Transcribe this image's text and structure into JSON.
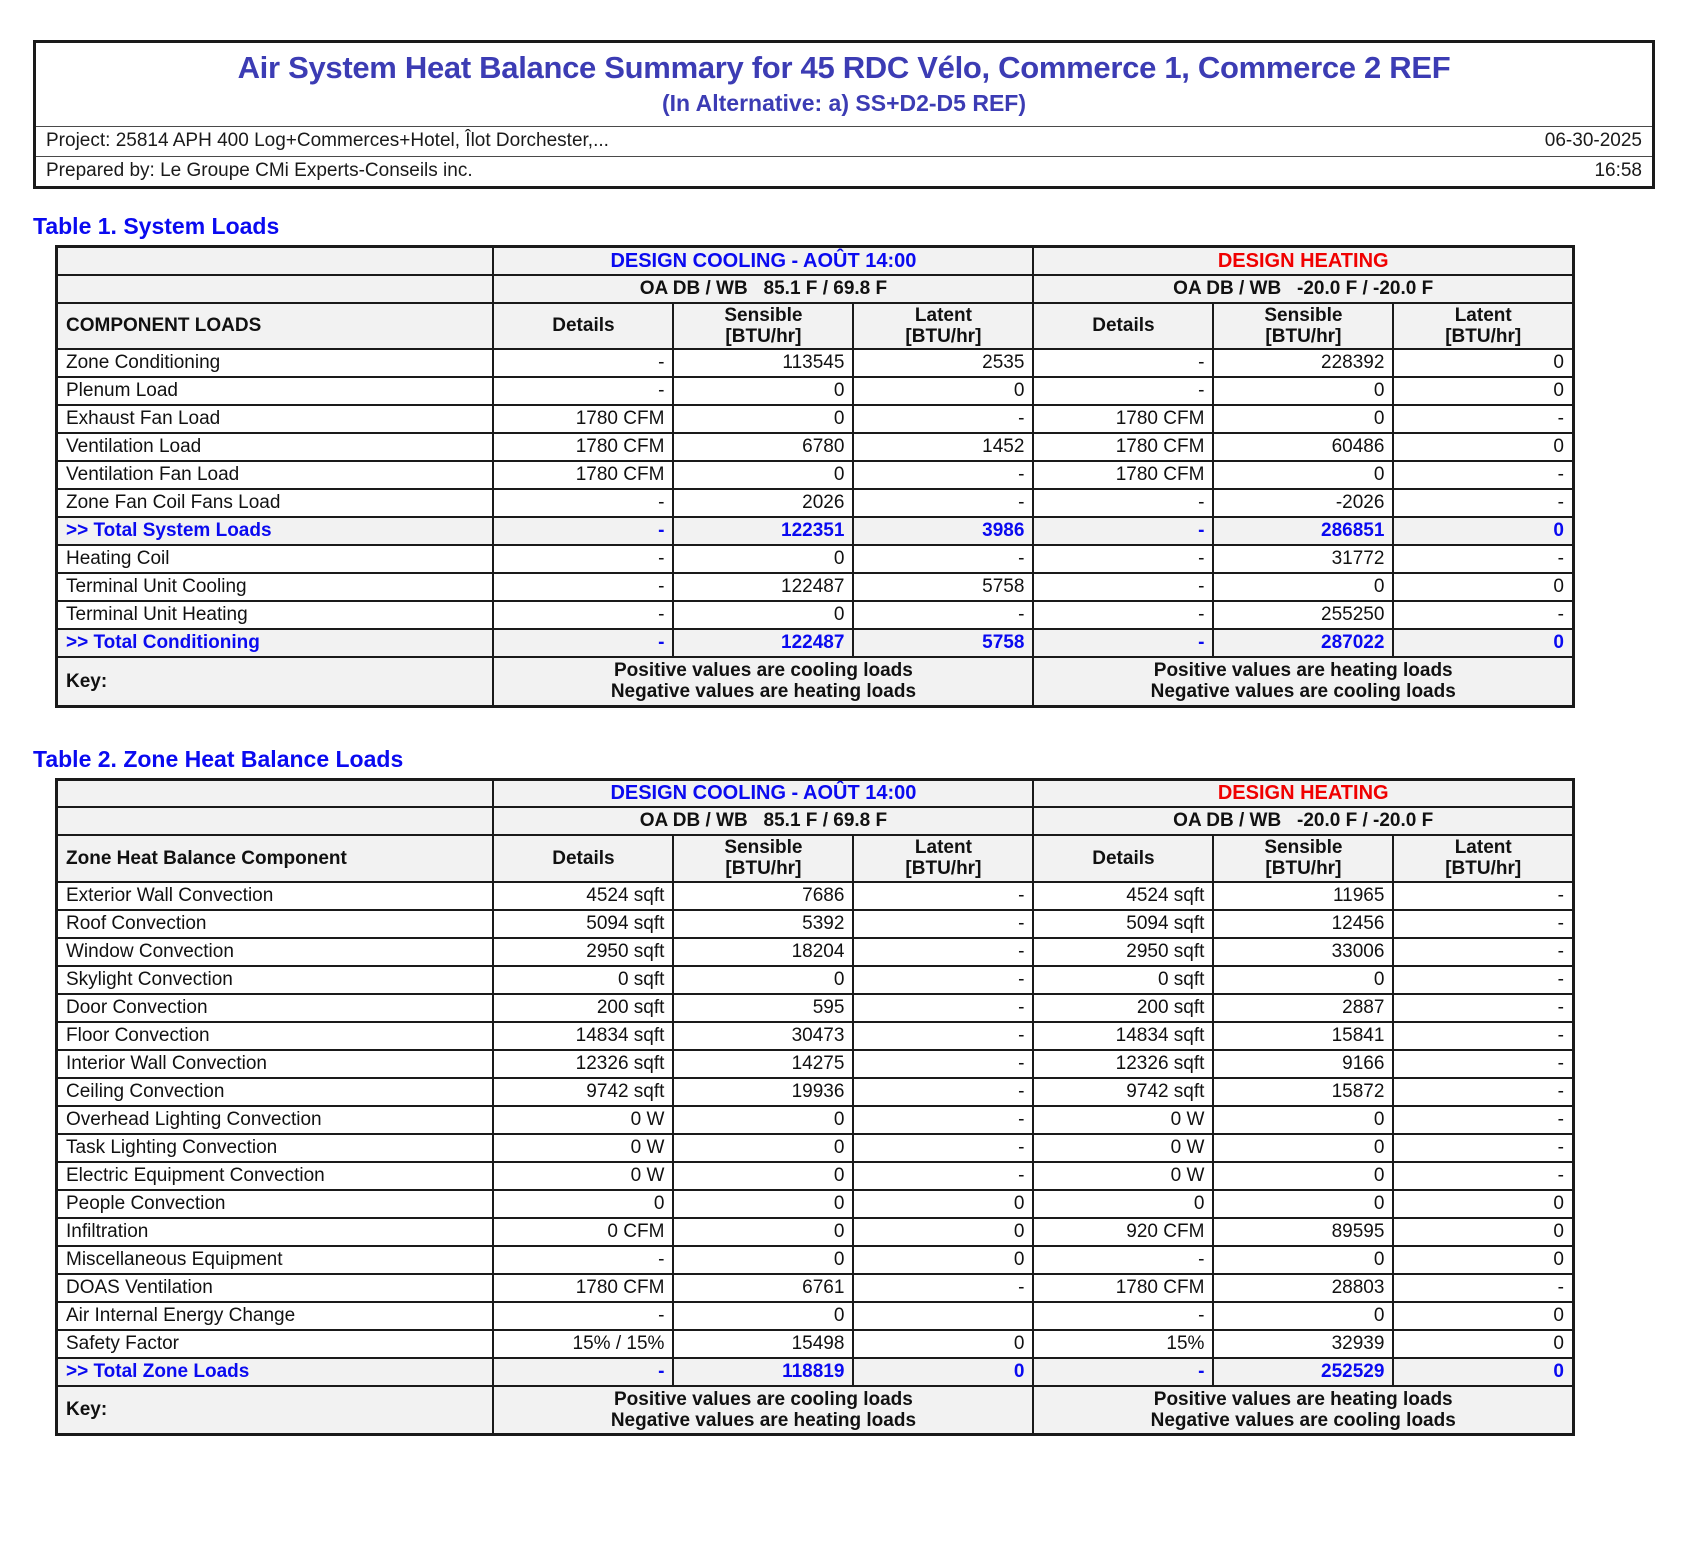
{
  "colors": {
    "title": "#3C3CB4",
    "caption": "#0A0AF0",
    "cooling": "#0A0AF0",
    "heating": "#F00000",
    "band_bg": "#F2F2F2"
  },
  "header": {
    "title": "Air System Heat Balance Summary for 45 RDC Vélo, Commerce 1, Commerce 2 REF",
    "subtitle": "(In Alternative: a) SS+D2-D5 REF)",
    "project": "Project: 25814 APH 400 Log+Commerces+Hotel, Îlot Dorchester,...",
    "date": "06-30-2025",
    "prepared_by": "Prepared by: Le Groupe CMi Experts-Conseils inc.",
    "time": "16:58"
  },
  "columns": {
    "details": "Details",
    "sensible": "Sensible",
    "latent": "Latent",
    "unit": "[BTU/hr]"
  },
  "tables": [
    {
      "caption": "Table 1. System Loads",
      "component_header": "COMPONENT LOADS",
      "cooling_title": "DESIGN COOLING - AOÛT 14:00",
      "heating_title": "DESIGN HEATING",
      "cooling_oa": "OA DB / WB   85.1 F / 69.8 F",
      "heating_oa": "OA DB / WB   -20.0 F / -20.0 F",
      "rows": [
        {
          "name": "Zone Conditioning",
          "values": [
            "-",
            "113545",
            "2535",
            "-",
            "228392",
            "0"
          ],
          "total": false
        },
        {
          "name": "Plenum Load",
          "values": [
            "-",
            "0",
            "0",
            "-",
            "0",
            "0"
          ],
          "total": false
        },
        {
          "name": "Exhaust Fan Load",
          "values": [
            "1780 CFM",
            "0",
            "-",
            "1780 CFM",
            "0",
            "-"
          ],
          "total": false
        },
        {
          "name": "Ventilation Load",
          "values": [
            "1780 CFM",
            "6780",
            "1452",
            "1780 CFM",
            "60486",
            "0"
          ],
          "total": false
        },
        {
          "name": "Ventilation Fan Load",
          "values": [
            "1780 CFM",
            "0",
            "-",
            "1780 CFM",
            "0",
            "-"
          ],
          "total": false
        },
        {
          "name": "Zone Fan Coil Fans Load",
          "values": [
            "-",
            "2026",
            "-",
            "-",
            "-2026",
            "-"
          ],
          "total": false
        },
        {
          "name": ">> Total System Loads",
          "values": [
            "-",
            "122351",
            "3986",
            "-",
            "286851",
            "0"
          ],
          "total": true
        },
        {
          "name": "Heating Coil",
          "values": [
            "-",
            "0",
            "-",
            "-",
            "31772",
            "-"
          ],
          "total": false
        },
        {
          "name": "Terminal Unit Cooling",
          "values": [
            "-",
            "122487",
            "5758",
            "-",
            "0",
            "0"
          ],
          "total": false
        },
        {
          "name": "Terminal Unit Heating",
          "values": [
            "-",
            "0",
            "-",
            "-",
            "255250",
            "-"
          ],
          "total": false
        },
        {
          "name": ">> Total Conditioning",
          "values": [
            "-",
            "122487",
            "5758",
            "-",
            "287022",
            "0"
          ],
          "total": true
        }
      ],
      "key": {
        "label": "Key:",
        "cooling": [
          "Positive values are cooling loads",
          "Negative values are heating loads"
        ],
        "heating": [
          "Positive values are heating loads",
          "Negative values are cooling loads"
        ]
      }
    },
    {
      "caption": "Table 2. Zone Heat Balance Loads",
      "component_header": "Zone Heat Balance Component",
      "cooling_title": "DESIGN COOLING - AOÛT 14:00",
      "heating_title": "DESIGN HEATING",
      "cooling_oa": "OA DB / WB   85.1 F / 69.8 F",
      "heating_oa": "OA DB / WB   -20.0 F / -20.0 F",
      "rows": [
        {
          "name": "Exterior Wall Convection",
          "values": [
            "4524 sqft",
            "7686",
            "-",
            "4524 sqft",
            "11965",
            "-"
          ],
          "total": false
        },
        {
          "name": "Roof Convection",
          "values": [
            "5094 sqft",
            "5392",
            "-",
            "5094 sqft",
            "12456",
            "-"
          ],
          "total": false
        },
        {
          "name": "Window Convection",
          "values": [
            "2950 sqft",
            "18204",
            "-",
            "2950 sqft",
            "33006",
            "-"
          ],
          "total": false
        },
        {
          "name": "Skylight Convection",
          "values": [
            "0 sqft",
            "0",
            "-",
            "0 sqft",
            "0",
            "-"
          ],
          "total": false
        },
        {
          "name": "Door Convection",
          "values": [
            "200 sqft",
            "595",
            "-",
            "200 sqft",
            "2887",
            "-"
          ],
          "total": false
        },
        {
          "name": "Floor Convection",
          "values": [
            "14834 sqft",
            "30473",
            "-",
            "14834 sqft",
            "15841",
            "-"
          ],
          "total": false
        },
        {
          "name": "Interior Wall Convection",
          "values": [
            "12326 sqft",
            "14275",
            "-",
            "12326 sqft",
            "9166",
            "-"
          ],
          "total": false
        },
        {
          "name": "Ceiling Convection",
          "values": [
            "9742 sqft",
            "19936",
            "-",
            "9742 sqft",
            "15872",
            "-"
          ],
          "total": false
        },
        {
          "name": "Overhead Lighting Convection",
          "values": [
            "0 W",
            "0",
            "-",
            "0 W",
            "0",
            "-"
          ],
          "total": false
        },
        {
          "name": "Task Lighting Convection",
          "values": [
            "0 W",
            "0",
            "-",
            "0 W",
            "0",
            "-"
          ],
          "total": false
        },
        {
          "name": "Electric Equipment Convection",
          "values": [
            "0 W",
            "0",
            "-",
            "0 W",
            "0",
            "-"
          ],
          "total": false
        },
        {
          "name": "People Convection",
          "values": [
            "0",
            "0",
            "0",
            "0",
            "0",
            "0"
          ],
          "total": false
        },
        {
          "name": "Infiltration",
          "values": [
            "0 CFM",
            "0",
            "0",
            "920 CFM",
            "89595",
            "0"
          ],
          "total": false
        },
        {
          "name": "Miscellaneous Equipment",
          "values": [
            "-",
            "0",
            "0",
            "-",
            "0",
            "0"
          ],
          "total": false
        },
        {
          "name": "DOAS Ventilation",
          "values": [
            "1780 CFM",
            "6761",
            "-",
            "1780 CFM",
            "28803",
            "-"
          ],
          "total": false
        },
        {
          "name": "Air Internal Energy Change",
          "values": [
            "-",
            "0",
            "",
            "-",
            "0",
            "0"
          ],
          "total": false
        },
        {
          "name": "Safety Factor",
          "values": [
            "15% / 15%",
            "15498",
            "0",
            "15%",
            "32939",
            "0"
          ],
          "total": false
        },
        {
          "name": ">> Total Zone Loads",
          "values": [
            "-",
            "118819",
            "0",
            "-",
            "252529",
            "0"
          ],
          "total": true
        }
      ],
      "key": {
        "label": "Key:",
        "cooling": [
          "Positive values are cooling loads",
          "Negative values are heating loads"
        ],
        "heating": [
          "Positive values are heating loads",
          "Negative values are cooling loads"
        ]
      }
    }
  ]
}
